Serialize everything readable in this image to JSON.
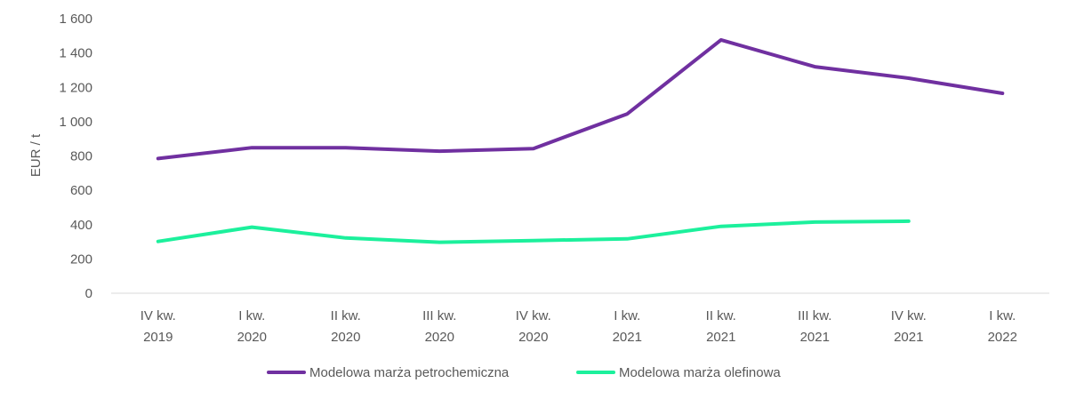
{
  "chart_data": {
    "type": "line",
    "categories": [
      [
        "IV kw.",
        "2019"
      ],
      [
        "I kw.",
        "2020"
      ],
      [
        "II kw.",
        "2020"
      ],
      [
        "III kw.",
        "2020"
      ],
      [
        "IV kw.",
        "2020"
      ],
      [
        "I kw.",
        "2021"
      ],
      [
        "II kw.",
        "2021"
      ],
      [
        "III kw.",
        "2021"
      ],
      [
        "IV kw.",
        "2021"
      ],
      [
        "I kw.",
        "2022"
      ]
    ],
    "series": [
      {
        "name": "Modelowa marża petrochemiczna",
        "color": "#7030A0",
        "values": [
          785,
          848,
          848,
          828,
          843,
          1045,
          1476,
          1320,
          1253,
          1165
        ]
      },
      {
        "name": "Modelowa marża olefinowa",
        "color": "#1CF09C",
        "values": [
          302,
          385,
          322,
          297,
          307,
          317,
          390,
          415,
          420,
          null
        ]
      }
    ],
    "ylabel": "EUR / t",
    "xlabel": "",
    "title": "",
    "ylim": [
      0,
      1600
    ],
    "yticks": [
      0,
      200,
      400,
      600,
      800,
      1000,
      1200,
      1400,
      1600
    ],
    "ytick_labels": [
      "0",
      "200",
      "400",
      "600",
      "800",
      "1 000",
      "1 200",
      "1 400",
      "1 600"
    ],
    "grid": false,
    "legend": "bottom-center"
  }
}
